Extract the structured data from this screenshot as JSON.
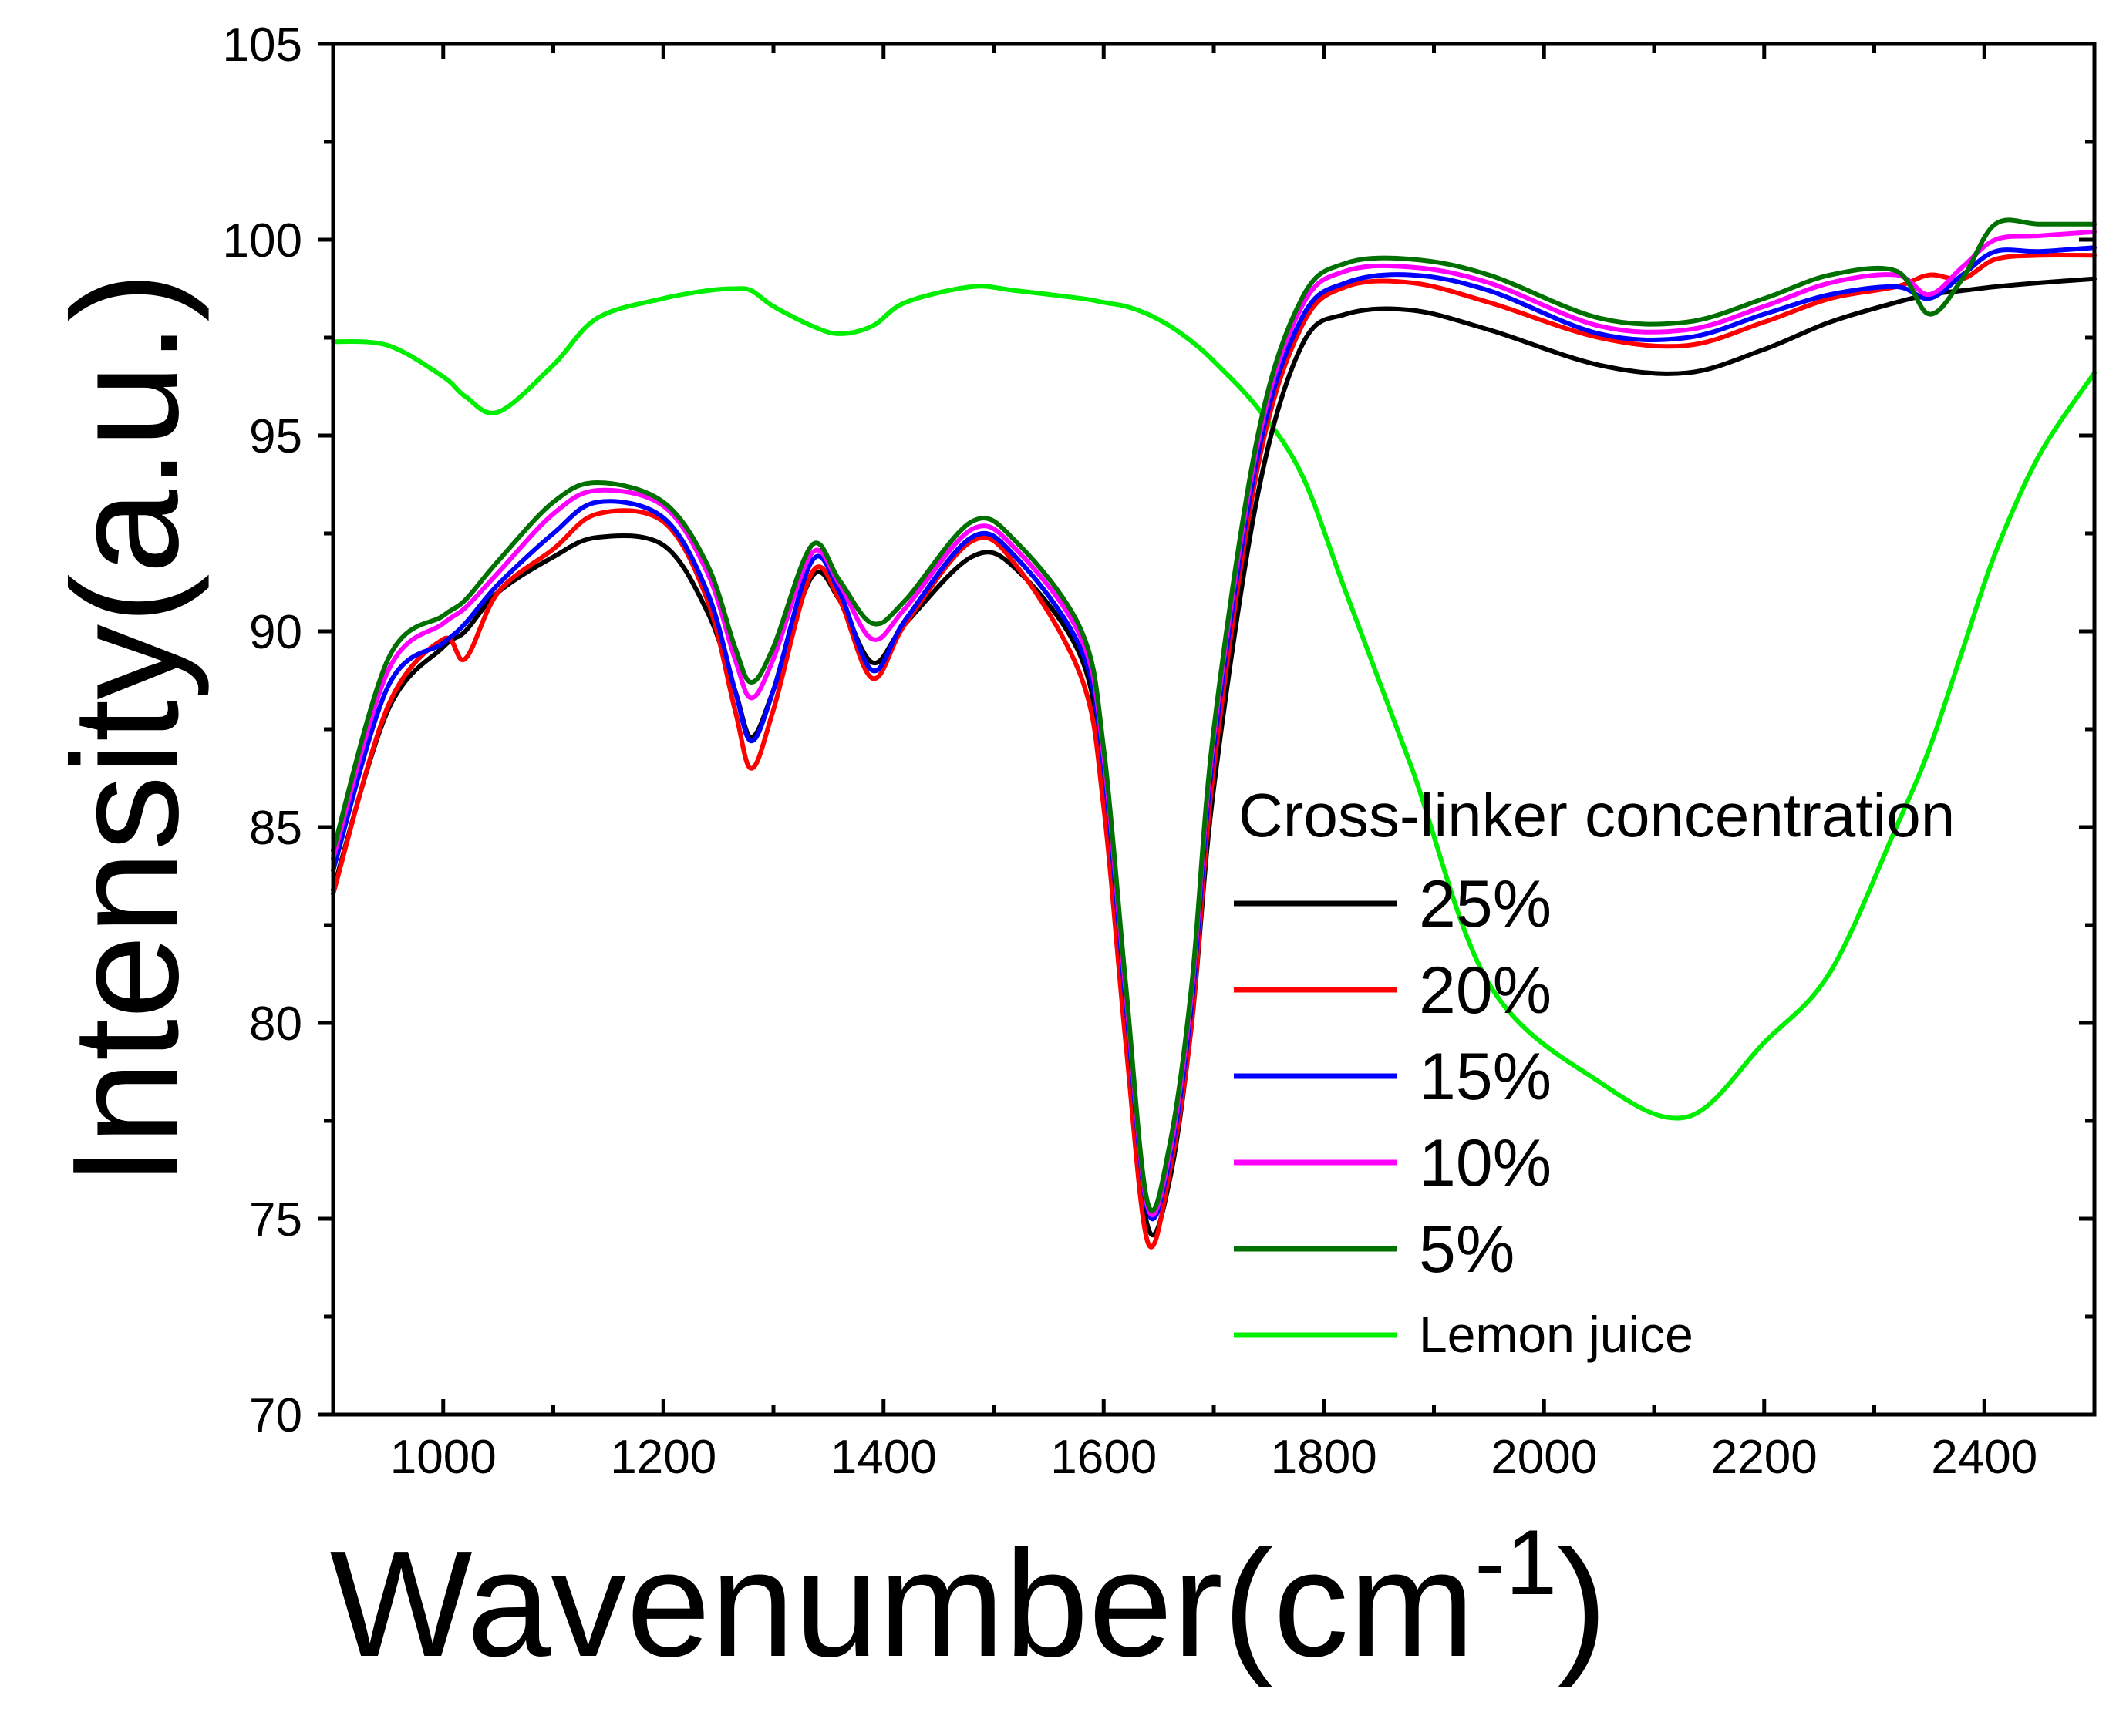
{
  "chart_data": {
    "type": "line",
    "xlabel_main": "Wavenumber(cm",
    "xlabel_sup": "-1",
    "xlabel_close": ")",
    "ylabel": "Intensity(a.u.)",
    "xlim": [
      900,
      2500
    ],
    "ylim": [
      70,
      105
    ],
    "xticks": [
      1000,
      1200,
      1400,
      1600,
      1800,
      2000,
      2200,
      2400
    ],
    "yticks": [
      70,
      75,
      80,
      85,
      90,
      95,
      100,
      105
    ],
    "legend_title": "Cross-linker concentration",
    "legend_position": "right-middle",
    "x": [
      900,
      950,
      1000,
      1020,
      1050,
      1100,
      1140,
      1200,
      1240,
      1265,
      1280,
      1300,
      1335,
      1360,
      1390,
      1420,
      1480,
      1520,
      1580,
      1600,
      1620,
      1640,
      1660,
      1680,
      1700,
      1740,
      1780,
      1820,
      1880,
      1950,
      2050,
      2130,
      2200,
      2260,
      2320,
      2350,
      2380,
      2410,
      2450,
      2500
    ],
    "series": [
      {
        "name": "25%",
        "color": "#000000",
        "values": [
          83.4,
          88.0,
          89.6,
          90.0,
          91.0,
          91.9,
          92.4,
          92.2,
          90.5,
          88.5,
          87.3,
          88.5,
          91.4,
          90.8,
          89.2,
          90.2,
          91.9,
          91.6,
          89.3,
          86.0,
          80.0,
          74.8,
          76.0,
          80.0,
          86.0,
          93.5,
          97.3,
          98.1,
          98.2,
          97.7,
          96.8,
          96.6,
          97.2,
          97.9,
          98.4,
          98.6,
          98.7,
          98.8,
          98.9,
          99.0
        ]
      },
      {
        "name": "20%",
        "color": "#ff0000",
        "values": [
          83.3,
          88.1,
          89.8,
          89.3,
          91.0,
          92.1,
          93.0,
          92.8,
          90.8,
          88.0,
          86.5,
          88.0,
          91.5,
          90.8,
          88.8,
          90.2,
          92.3,
          91.7,
          88.8,
          85.5,
          79.5,
          74.4,
          76.2,
          80.0,
          86.5,
          94.2,
          97.8,
          98.8,
          98.9,
          98.4,
          97.5,
          97.3,
          97.9,
          98.5,
          98.8,
          99.1,
          99.0,
          99.5,
          99.6,
          99.6
        ]
      },
      {
        "name": "15%",
        "color": "#0000ff",
        "values": [
          83.9,
          88.6,
          89.7,
          90.2,
          91.2,
          92.5,
          93.3,
          92.9,
          91.0,
          88.5,
          87.2,
          88.5,
          91.8,
          91.0,
          89.0,
          90.3,
          92.4,
          91.9,
          89.5,
          86.5,
          80.5,
          75.2,
          76.5,
          80.5,
          87.0,
          94.5,
          98.0,
          98.9,
          99.1,
          98.7,
          97.6,
          97.5,
          98.1,
          98.6,
          98.8,
          98.5,
          99.1,
          99.7,
          99.7,
          99.8
        ]
      },
      {
        "name": "10%",
        "color": "#ff00ff",
        "values": [
          84.2,
          89.0,
          90.2,
          90.6,
          91.5,
          93.0,
          93.6,
          93.2,
          91.5,
          89.3,
          88.3,
          89.3,
          92.0,
          91.2,
          89.8,
          90.6,
          92.6,
          92.1,
          89.8,
          86.8,
          80.8,
          75.3,
          76.7,
          80.8,
          87.3,
          94.8,
          98.3,
          99.2,
          99.3,
          98.9,
          97.8,
          97.7,
          98.3,
          98.9,
          99.1,
          98.6,
          99.3,
          100.0,
          100.1,
          100.2
        ]
      },
      {
        "name": "5%",
        "color": "#007000",
        "values": [
          84.4,
          89.3,
          90.4,
          90.8,
          91.8,
          93.3,
          93.8,
          93.3,
          91.7,
          89.6,
          88.7,
          89.6,
          92.2,
          91.3,
          90.2,
          90.8,
          92.8,
          92.3,
          90.0,
          87.0,
          81.0,
          75.4,
          76.9,
          81.0,
          87.5,
          95.0,
          98.5,
          99.4,
          99.5,
          99.1,
          98.0,
          97.9,
          98.5,
          99.1,
          99.2,
          98.1,
          99.0,
          100.4,
          100.4,
          100.4
        ]
      },
      {
        "name": "Lemon juice",
        "color": "#00ee00",
        "values": [
          97.4,
          97.3,
          96.5,
          96.0,
          95.6,
          96.8,
          98.0,
          98.5,
          98.7,
          98.75,
          98.7,
          98.3,
          97.8,
          97.6,
          97.8,
          98.4,
          98.8,
          98.7,
          98.5,
          98.4,
          98.3,
          98.1,
          97.8,
          97.4,
          96.9,
          95.7,
          94.0,
          91.0,
          86.5,
          81.0,
          78.5,
          77.6,
          79.5,
          81.3,
          85.0,
          87.0,
          89.5,
          92.0,
          94.5,
          96.6
        ]
      }
    ]
  }
}
